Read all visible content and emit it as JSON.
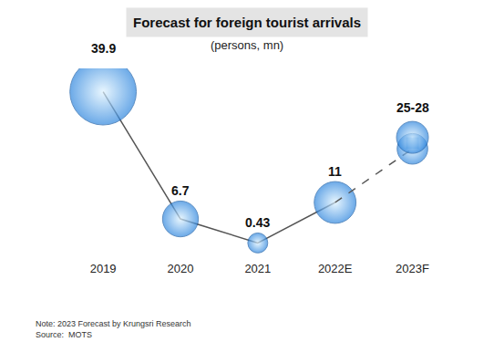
{
  "chart_data": {
    "type": "line",
    "title": "Forecast for foreign tourist arrivals",
    "subtitle": "(persons, mn)",
    "categories": [
      "2019",
      "2020",
      "2021",
      "2022E",
      "2023F"
    ],
    "values": [
      39.9,
      6.7,
      0.43,
      11,
      null
    ],
    "range_low": [
      null,
      null,
      null,
      null,
      25
    ],
    "range_high": [
      null,
      null,
      null,
      null,
      28
    ],
    "range_labels": [
      null,
      null,
      null,
      null,
      "25-28"
    ],
    "ylim": [
      -4,
      46
    ],
    "grid": false,
    "tick_labels": "x",
    "data_labels": true,
    "marker": "circle",
    "line_style": "solid",
    "color": "#2e86de",
    "notes": [
      "Note: 2023 Forecast by Krungsri Research",
      "Source:  MOTS"
    ]
  }
}
